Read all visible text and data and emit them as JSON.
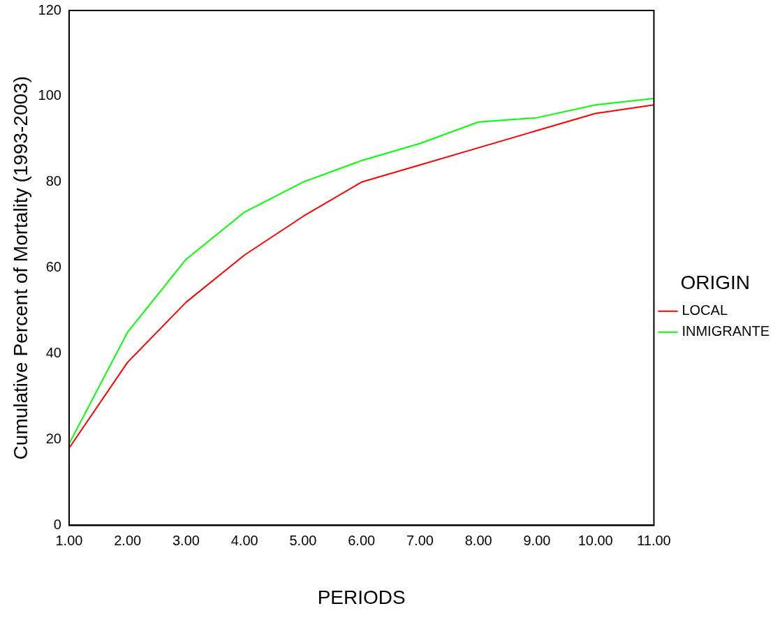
{
  "chart_data": {
    "type": "line",
    "xlabel": "PERIODS",
    "ylabel": "Cumulative Percent of Mortality (1993-2003)",
    "legend_title": "ORIGIN",
    "x": [
      1,
      2,
      3,
      4,
      5,
      6,
      7,
      8,
      9,
      10,
      11
    ],
    "series": [
      {
        "name": "LOCAL",
        "color": "#ff0000",
        "values": [
          18,
          38,
          52,
          63,
          72,
          80,
          84,
          88,
          92,
          96,
          98
        ]
      },
      {
        "name": "INMIGRANTE",
        "color": "#00ff00",
        "values": [
          19,
          45,
          62,
          73,
          80,
          85,
          89,
          94,
          95,
          98,
          99.5
        ]
      }
    ],
    "xlim": [
      1,
      11
    ],
    "xticks": [
      {
        "value": 1,
        "label": "1.00"
      },
      {
        "value": 2,
        "label": "2.00"
      },
      {
        "value": 3,
        "label": "3.00"
      },
      {
        "value": 4,
        "label": "4.00"
      },
      {
        "value": 5,
        "label": "5.00"
      },
      {
        "value": 6,
        "label": "6.00"
      },
      {
        "value": 7,
        "label": "7.00"
      },
      {
        "value": 8,
        "label": "8.00"
      },
      {
        "value": 9,
        "label": "9.00"
      },
      {
        "value": 10,
        "label": "10.00"
      },
      {
        "value": 11,
        "label": "11.00"
      }
    ],
    "ylim": [
      0,
      120
    ],
    "yticks": [
      0,
      20,
      40,
      60,
      80,
      100,
      120
    ],
    "grid": false,
    "legend": "right",
    "marker": "none",
    "line_style": "solid"
  }
}
